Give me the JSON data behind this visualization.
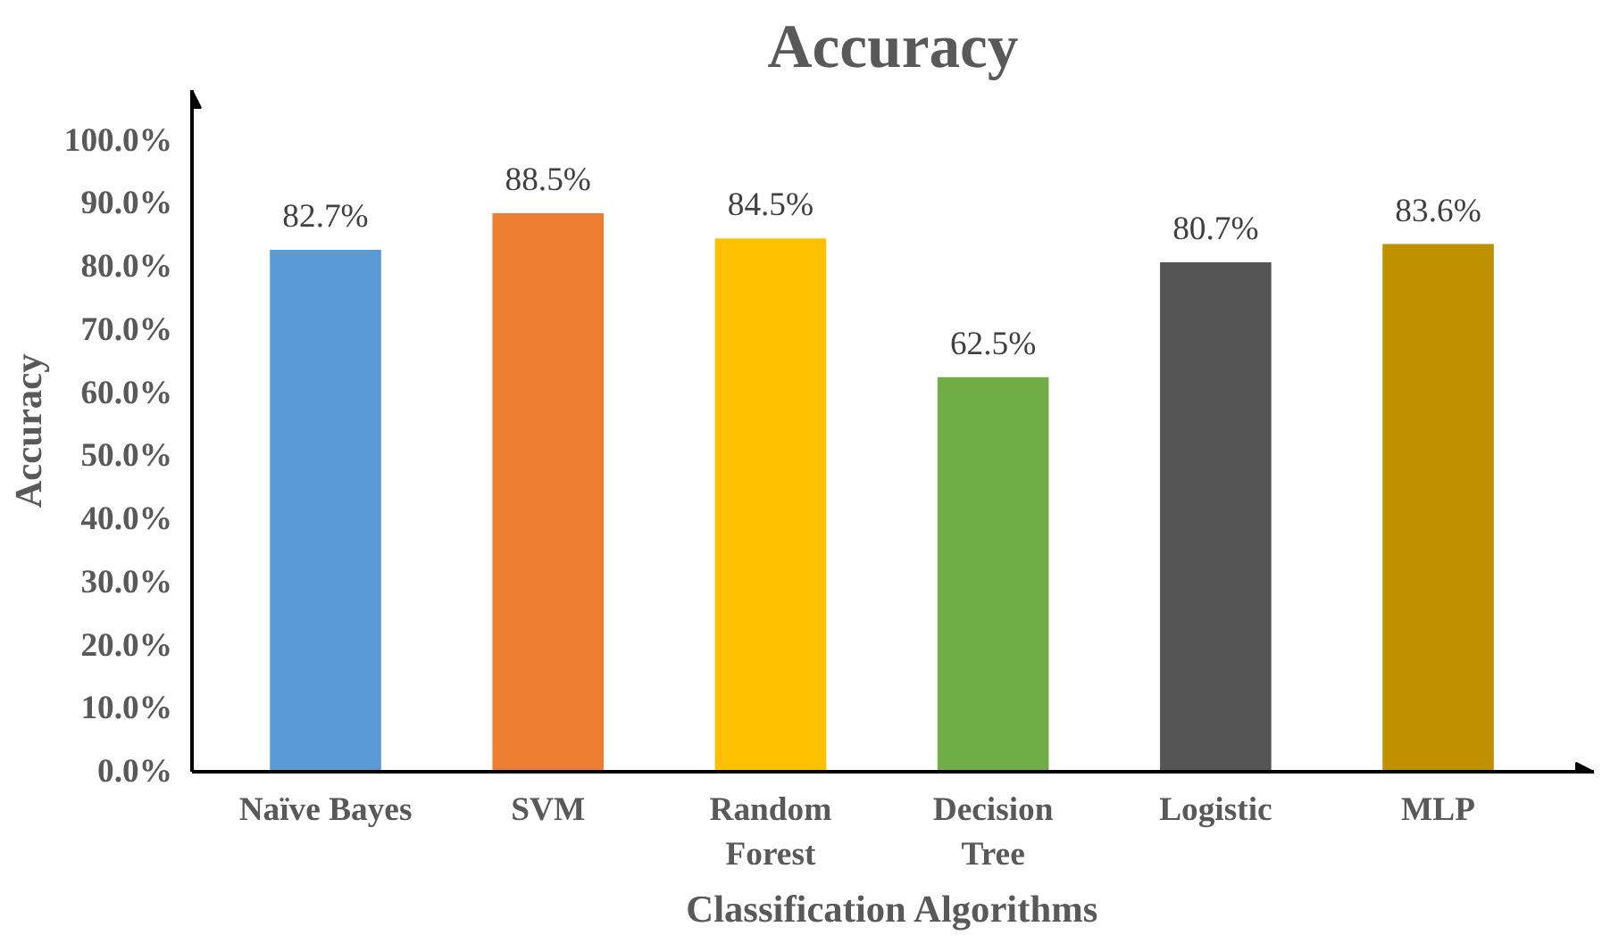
{
  "chart_data": {
    "type": "bar",
    "title": "Accuracy",
    "xlabel": "Classification Algorithms",
    "ylabel": "Accuracy",
    "categories": [
      "Naïve Bayes",
      "SVM",
      "Random Forest",
      "Decision Tree",
      "Logistic",
      "MLP"
    ],
    "values": [
      82.7,
      88.5,
      84.5,
      62.5,
      80.7,
      83.6
    ],
    "colors": [
      "#5b9bd5",
      "#ed7d31",
      "#ffc000",
      "#70ad47",
      "#555555",
      "#bf9000"
    ],
    "value_labels": [
      "82.7%",
      "88.5%",
      "84.5%",
      "62.5%",
      "80.7%",
      "83.6%"
    ],
    "ylim": [
      0,
      108
    ],
    "yticks": [
      {
        "value": 0,
        "label": "0.0%"
      },
      {
        "value": 10,
        "label": "10.0%"
      },
      {
        "value": 20,
        "label": "20.0%"
      },
      {
        "value": 30,
        "label": "30.0%"
      },
      {
        "value": 40,
        "label": "40.0%"
      },
      {
        "value": 50,
        "label": "50.0%"
      },
      {
        "value": 60,
        "label": "60.0%"
      },
      {
        "value": 70,
        "label": "70.0%"
      },
      {
        "value": 80,
        "label": "80.0%"
      },
      {
        "value": 90,
        "label": "90.0%"
      },
      {
        "value": 100,
        "label": "100.0%"
      }
    ],
    "grid": false
  }
}
